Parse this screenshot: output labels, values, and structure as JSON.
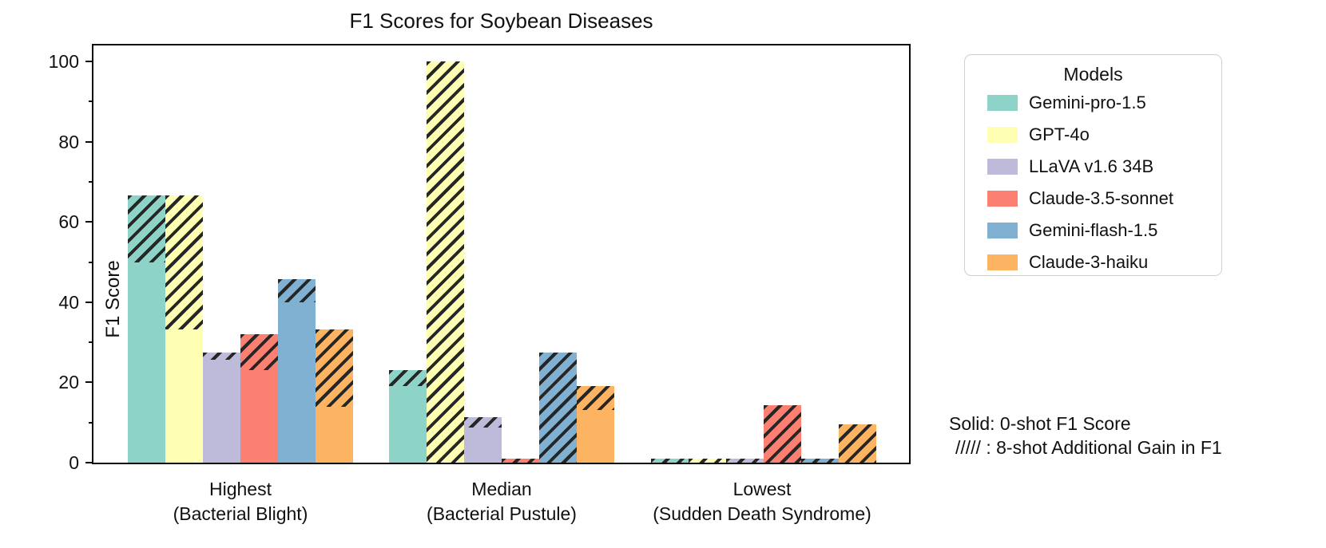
{
  "title": "F1 Scores for Soybean Diseases",
  "legend": {
    "title": "Models"
  },
  "annotation": {
    "line1": "Solid: 0-shot F1 Score",
    "line2": "///// : 8-shot Additional Gain in F1"
  },
  "chart_data": {
    "type": "bar",
    "stacked": true,
    "title": "F1 Scores for Soybean Diseases",
    "ylabel": "F1 Score",
    "xlabel": "",
    "ylim": [
      0,
      105
    ],
    "y_ticks": [
      0,
      20,
      40,
      60,
      80,
      100
    ],
    "grid": false,
    "legend_position": "upper right, outside plot",
    "hatch_meaning": "8-shot additional gain in F1",
    "solid_meaning": "0-shot F1 score",
    "categories": [
      {
        "rank": "Highest",
        "disease": "(Bacterial Blight)"
      },
      {
        "rank": "Median",
        "disease": "(Bacterial Pustule)"
      },
      {
        "rank": "Lowest",
        "disease": "(Sudden Death Syndrome)"
      }
    ],
    "series": [
      {
        "name": "Gemini-pro-1.5",
        "color": "#8dd3c7",
        "solid_0shot": [
          50.0,
          19.0,
          0.0
        ],
        "gain_8shot": [
          16.7,
          4.0,
          0.9
        ]
      },
      {
        "name": "GPT-4o",
        "color": "#ffffb3",
        "solid_0shot": [
          33.3,
          0.0,
          0.0
        ],
        "gain_8shot": [
          33.4,
          100.0,
          0.9
        ]
      },
      {
        "name": "LLaVA v1.6 34B",
        "color": "#bebada",
        "solid_0shot": [
          25.6,
          8.7,
          0.0
        ],
        "gain_8shot": [
          1.8,
          2.7,
          0.9
        ]
      },
      {
        "name": "Claude-3.5-sonnet",
        "color": "#fb8072",
        "solid_0shot": [
          23.0,
          0.0,
          0.0
        ],
        "gain_8shot": [
          9.0,
          1.0,
          14.4
        ]
      },
      {
        "name": "Gemini-flash-1.5",
        "color": "#80b1d3",
        "solid_0shot": [
          40.0,
          0.0,
          0.0
        ],
        "gain_8shot": [
          5.7,
          27.4,
          0.9
        ]
      },
      {
        "name": "Claude-3-haiku",
        "color": "#fdb462",
        "solid_0shot": [
          14.0,
          13.2,
          0.0
        ],
        "gain_8shot": [
          19.3,
          5.8,
          9.5
        ]
      }
    ]
  }
}
